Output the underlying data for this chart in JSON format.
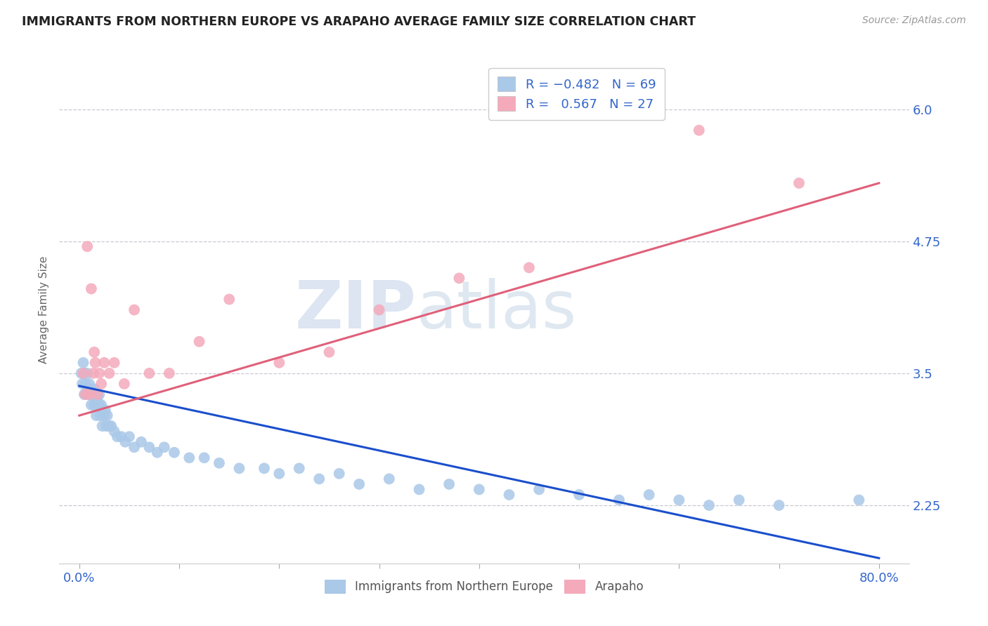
{
  "title": "IMMIGRANTS FROM NORTHERN EUROPE VS ARAPAHO AVERAGE FAMILY SIZE CORRELATION CHART",
  "source_text": "Source: ZipAtlas.com",
  "ylabel": "Average Family Size",
  "yticks": [
    2.25,
    3.5,
    4.75,
    6.0
  ],
  "xtick_positions": [
    0.0,
    10.0,
    20.0,
    30.0,
    40.0,
    50.0,
    60.0,
    70.0,
    80.0
  ],
  "xticklabels": [
    "0.0%",
    "",
    "",
    "",
    "",
    "",
    "",
    "",
    "80.0%"
  ],
  "xlim": [
    -2.0,
    83.0
  ],
  "ylim": [
    1.7,
    6.5
  ],
  "blue_R": -0.482,
  "blue_N": 69,
  "pink_R": 0.567,
  "pink_N": 27,
  "blue_color": "#aac8e8",
  "pink_color": "#f4aabb",
  "blue_line_color": "#1a4fcc",
  "pink_line_color": "#e0607a",
  "legend_label_blue": "Immigrants from Northern Europe",
  "legend_label_pink": "Arapaho",
  "watermark_zip": "ZIP",
  "watermark_atlas": "atlas",
  "background_color": "#ffffff",
  "grid_color": "#c8c8d4",
  "axis_tick_color": "#3366cc",
  "title_color": "#222222",
  "source_color": "#999999",
  "ylabel_color": "#666666",
  "blue_x": [
    0.2,
    0.3,
    0.4,
    0.5,
    0.5,
    0.6,
    0.7,
    0.8,
    0.9,
    1.0,
    1.0,
    1.1,
    1.2,
    1.2,
    1.3,
    1.4,
    1.5,
    1.5,
    1.6,
    1.7,
    1.8,
    1.9,
    2.0,
    2.0,
    2.1,
    2.2,
    2.3,
    2.4,
    2.5,
    2.6,
    2.7,
    2.8,
    3.0,
    3.2,
    3.5,
    3.8,
    4.2,
    4.6,
    5.0,
    5.5,
    6.2,
    7.0,
    7.8,
    8.5,
    9.5,
    11.0,
    12.5,
    14.0,
    16.0,
    18.5,
    20.0,
    22.0,
    24.0,
    26.0,
    28.0,
    31.0,
    34.0,
    37.0,
    40.0,
    43.0,
    46.0,
    50.0,
    54.0,
    57.0,
    60.0,
    63.0,
    66.0,
    70.0,
    78.0
  ],
  "blue_y": [
    3.5,
    3.4,
    3.6,
    3.3,
    3.5,
    3.4,
    3.3,
    3.5,
    3.35,
    3.4,
    3.3,
    3.3,
    3.35,
    3.2,
    3.3,
    3.3,
    3.35,
    3.2,
    3.2,
    3.1,
    3.25,
    3.2,
    3.2,
    3.3,
    3.1,
    3.2,
    3.0,
    3.1,
    3.1,
    3.15,
    3.0,
    3.1,
    3.0,
    3.0,
    2.95,
    2.9,
    2.9,
    2.85,
    2.9,
    2.8,
    2.85,
    2.8,
    2.75,
    2.8,
    2.75,
    2.7,
    2.7,
    2.65,
    2.6,
    2.6,
    2.55,
    2.6,
    2.5,
    2.55,
    2.45,
    2.5,
    2.4,
    2.45,
    2.4,
    2.35,
    2.4,
    2.35,
    2.3,
    2.35,
    2.3,
    2.25,
    2.3,
    2.25,
    2.3
  ],
  "pink_x": [
    0.4,
    0.6,
    0.8,
    1.0,
    1.2,
    1.4,
    1.5,
    1.6,
    1.8,
    2.0,
    2.2,
    2.5,
    3.0,
    3.5,
    4.5,
    5.5,
    7.0,
    9.0,
    12.0,
    15.0,
    20.0,
    25.0,
    30.0,
    38.0,
    45.0,
    62.0,
    72.0
  ],
  "pink_y": [
    3.5,
    3.3,
    4.7,
    3.3,
    4.3,
    3.5,
    3.7,
    3.6,
    3.3,
    3.5,
    3.4,
    3.6,
    3.5,
    3.6,
    3.4,
    4.1,
    3.5,
    3.5,
    3.8,
    4.2,
    3.6,
    3.7,
    4.1,
    4.4,
    4.5,
    5.8,
    5.3
  ],
  "blue_trendline_x": [
    0.0,
    80.0
  ],
  "blue_trendline_y": [
    3.38,
    1.75
  ],
  "pink_trendline_x": [
    0.0,
    80.0
  ],
  "pink_trendline_y": [
    3.1,
    5.3
  ]
}
